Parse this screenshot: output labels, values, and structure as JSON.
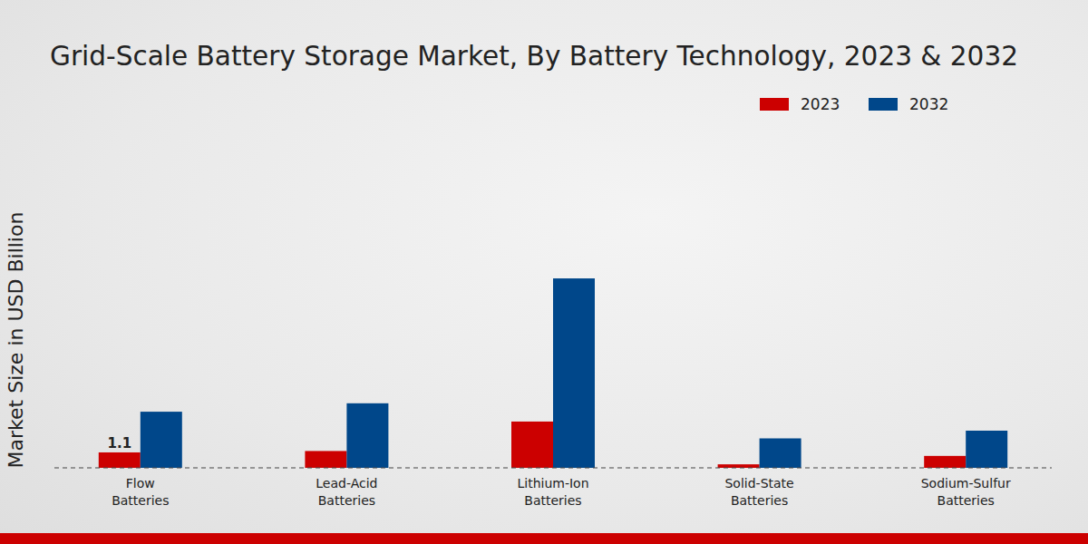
{
  "chart_data": {
    "type": "bar",
    "title": "Grid-Scale Battery Storage Market, By Battery Technology, 2023 & 2032",
    "y_label": "Market Size in USD Billion",
    "categories": [
      "Flow Batteries",
      "Lead-Acid Batteries",
      "Lithium-Ion Batteries",
      "Solid-State Batteries",
      "Sodium-Sulfur Batteries"
    ],
    "series": [
      {
        "name": "2023",
        "color": "#cc0000",
        "values": [
          1.1,
          1.2,
          3.3,
          0.25,
          0.85
        ],
        "value_labels": [
          "1.1",
          null,
          null,
          null,
          null
        ]
      },
      {
        "name": "2032",
        "color": "#00478a",
        "values": [
          4.0,
          4.6,
          13.5,
          2.1,
          2.65
        ]
      }
    ],
    "ylim": [
      0,
      21
    ],
    "yticks": [
      0
    ],
    "tick_labels": "x",
    "legend": "top-right",
    "grid": false
  }
}
